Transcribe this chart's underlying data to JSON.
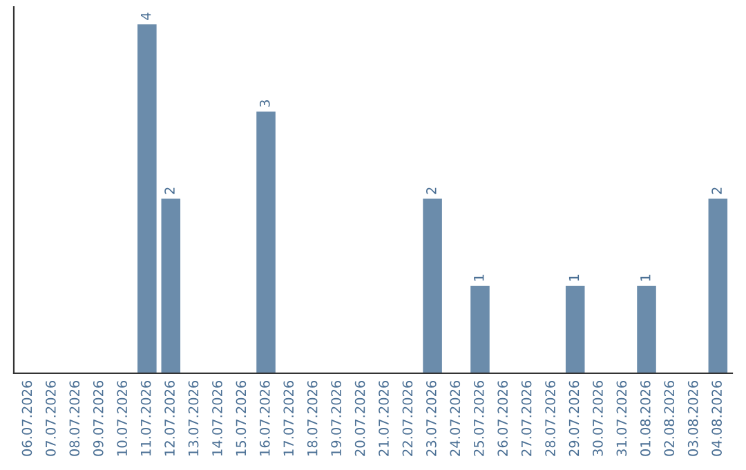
{
  "chart_data": {
    "type": "bar",
    "categories": [
      "06.07.2026",
      "07.07.2026",
      "08.07.2026",
      "09.07.2026",
      "10.07.2026",
      "11.07.2026",
      "12.07.2026",
      "13.07.2026",
      "14.07.2026",
      "15.07.2026",
      "16.07.2026",
      "17.07.2026",
      "18.07.2026",
      "19.07.2026",
      "20.07.2026",
      "21.07.2026",
      "22.07.2026",
      "23.07.2026",
      "24.07.2026",
      "25.07.2026",
      "26.07.2026",
      "27.07.2026",
      "28.07.2026",
      "29.07.2026",
      "30.07.2026",
      "31.07.2026",
      "01.08.2026",
      "02.08.2026",
      "03.08.2026",
      "04.08.2026"
    ],
    "values": [
      0,
      0,
      0,
      0,
      0,
      4,
      2,
      0,
      0,
      0,
      3,
      0,
      0,
      0,
      0,
      0,
      0,
      2,
      0,
      1,
      0,
      0,
      0,
      1,
      0,
      0,
      1,
      0,
      0,
      2
    ],
    "value_labels": [
      null,
      null,
      null,
      null,
      null,
      "4",
      "2",
      null,
      null,
      null,
      "3",
      null,
      null,
      null,
      null,
      null,
      null,
      "2",
      null,
      "1",
      null,
      null,
      null,
      "1",
      null,
      null,
      "1",
      null,
      null,
      "2"
    ],
    "color": "#6b8cab",
    "tick_labels": "x",
    "grid": false
  }
}
